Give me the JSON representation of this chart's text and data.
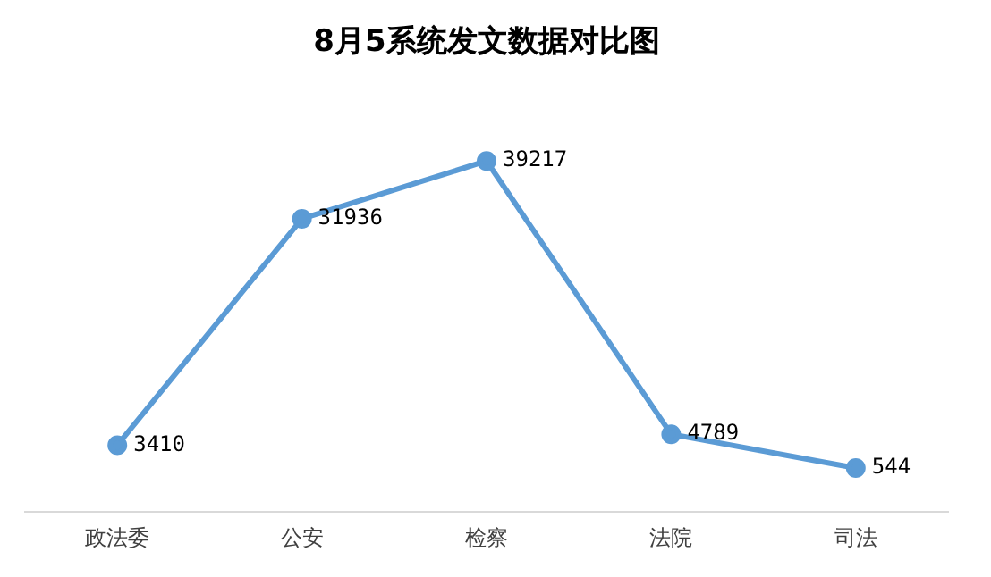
{
  "chart_data": {
    "type": "line",
    "title": "8月5系统发文数据对比图",
    "categories": [
      "政法委",
      "公安",
      "检察",
      "法院",
      "司法"
    ],
    "series": [
      {
        "color": "#5b9bd5",
        "values": [
          3410,
          31936,
          39217,
          4789,
          544
        ]
      }
    ],
    "data_labels": true,
    "marker": "circle",
    "legend": false,
    "grid": false
  }
}
